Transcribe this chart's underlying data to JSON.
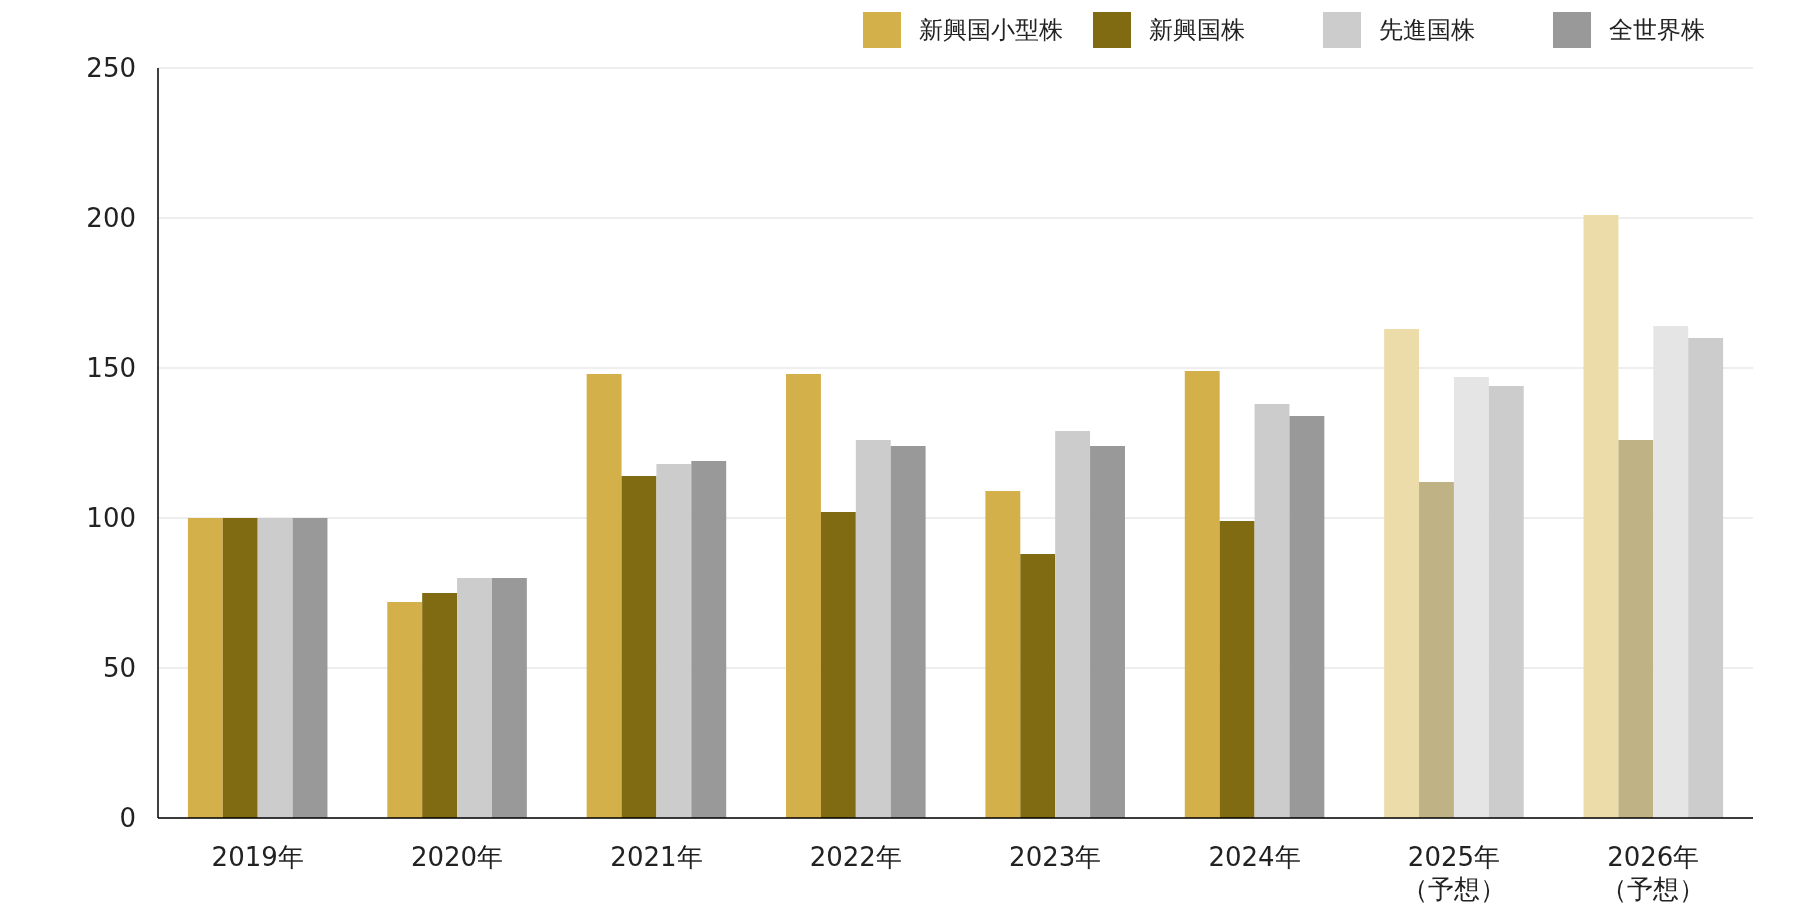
{
  "chart_data": {
    "type": "bar",
    "categories": [
      "2019年",
      "2020年",
      "2021年",
      "2022年",
      "2023年",
      "2024年",
      "2025年（予想）",
      "2026年（予想）"
    ],
    "series": [
      {
        "name": "新興国小型株",
        "color": "#d4b04a",
        "colors": [
          "#d4b04a",
          "#d4b04a",
          "#d4b04a",
          "#d4b04a",
          "#d4b04a",
          "#d4b04a",
          "#ecdcaa",
          "#ecdcaa"
        ],
        "values": [
          100,
          72,
          148,
          148,
          109,
          149,
          163,
          201
        ]
      },
      {
        "name": "新興国株",
        "color": "#806a12",
        "colors": [
          "#806a12",
          "#806a12",
          "#806a12",
          "#806a12",
          "#806a12",
          "#806a12",
          "#bfb386",
          "#bfb386"
        ],
        "values": [
          100,
          75,
          114,
          102,
          88,
          99,
          112,
          126
        ]
      },
      {
        "name": "先進国株",
        "color": "#cccccc",
        "colors": [
          "#cccccc",
          "#cccccc",
          "#cccccc",
          "#cccccc",
          "#cccccc",
          "#cccccc",
          "#e5e5e5",
          "#e5e5e5"
        ],
        "values": [
          100,
          80,
          118,
          126,
          129,
          138,
          147,
          164
        ]
      },
      {
        "name": "全世界株",
        "color": "#999999",
        "colors": [
          "#999999",
          "#999999",
          "#999999",
          "#999999",
          "#999999",
          "#999999",
          "#cccccc",
          "#cccccc"
        ],
        "values": [
          100,
          80,
          119,
          124,
          124,
          134,
          144,
          160
        ]
      }
    ],
    "ylim": [
      0,
      250
    ],
    "yticks": [
      0,
      50,
      100,
      150,
      200,
      250
    ],
    "grid": "y",
    "legend": "top right"
  }
}
